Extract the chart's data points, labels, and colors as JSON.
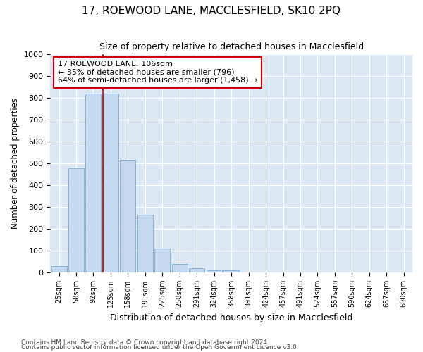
{
  "title": "17, ROEWOOD LANE, MACCLESFIELD, SK10 2PQ",
  "subtitle": "Size of property relative to detached houses in Macclesfield",
  "xlabel": "Distribution of detached houses by size in Macclesfield",
  "ylabel": "Number of detached properties",
  "bar_labels": [
    "25sqm",
    "58sqm",
    "92sqm",
    "125sqm",
    "158sqm",
    "191sqm",
    "225sqm",
    "258sqm",
    "291sqm",
    "324sqm",
    "358sqm",
    "391sqm",
    "424sqm",
    "457sqm",
    "491sqm",
    "524sqm",
    "557sqm",
    "590sqm",
    "624sqm",
    "657sqm",
    "690sqm"
  ],
  "bar_values": [
    30,
    478,
    820,
    820,
    515,
    265,
    110,
    38,
    20,
    10,
    8,
    0,
    0,
    0,
    0,
    0,
    0,
    0,
    0,
    0,
    0
  ],
  "bar_color": "#c5d8f0",
  "bar_edge_color": "#7badd4",
  "chart_bg_color": "#dde8f5",
  "fig_bg_color": "#ffffff",
  "grid_color": "#ffffff",
  "ylim": [
    0,
    1000
  ],
  "yticks": [
    0,
    100,
    200,
    300,
    400,
    500,
    600,
    700,
    800,
    900,
    1000
  ],
  "property_line_index": 3,
  "property_line_color": "#cc0000",
  "annotation_title": "17 ROEWOOD LANE: 106sqm",
  "annotation_line1": "← 35% of detached houses are smaller (796)",
  "annotation_line2": "64% of semi-detached houses are larger (1,458) →",
  "annotation_box_color": "#ffffff",
  "annotation_box_edge": "#cc0000",
  "footnote1": "Contains HM Land Registry data © Crown copyright and database right 2024.",
  "footnote2": "Contains public sector information licensed under the Open Government Licence v3.0."
}
